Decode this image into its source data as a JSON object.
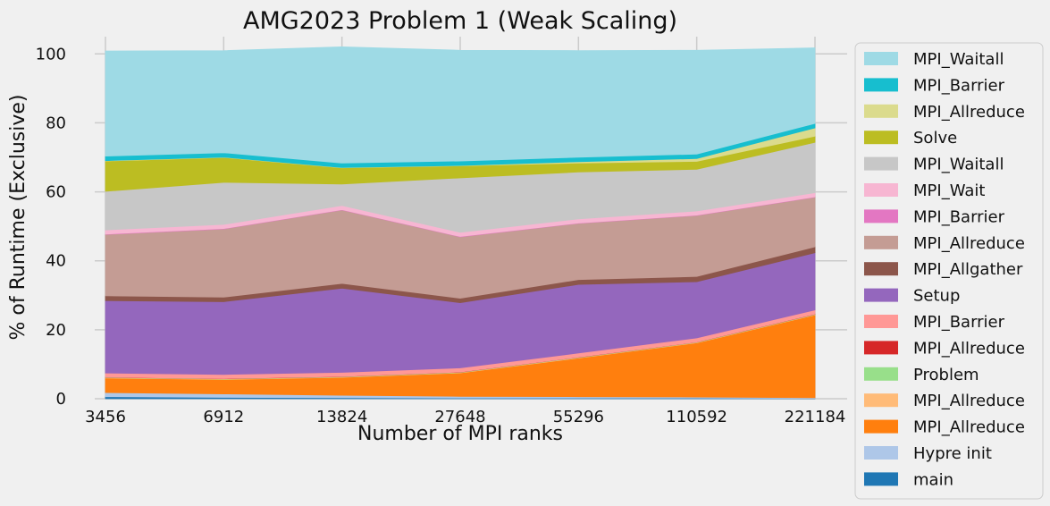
{
  "chart_data": {
    "type": "area",
    "stacked": true,
    "title": "AMG2023 Problem 1 (Weak Scaling)",
    "xlabel": "Number of MPI ranks",
    "ylabel": "% of Runtime (Exclusive)",
    "categories": [
      "3456",
      "6912",
      "13824",
      "27648",
      "55296",
      "110592",
      "221184"
    ],
    "ylim": [
      0,
      105
    ],
    "yticks": [
      0,
      20,
      40,
      60,
      80,
      100
    ],
    "grid": true,
    "legend_position": "right-outside",
    "series": [
      {
        "name": "main",
        "color": "#1f77b4",
        "values": [
          0.6,
          0.4,
          0.3,
          0.2,
          0.2,
          0.2,
          0.1
        ]
      },
      {
        "name": "Hypre init",
        "color": "#aec7e8",
        "values": [
          1.2,
          1.0,
          0.7,
          0.5,
          0.4,
          0.3,
          0.2
        ]
      },
      {
        "name": "MPI_Allreduce",
        "color": "#ff7f0e",
        "values": [
          4.2,
          4.2,
          5.2,
          6.8,
          11.2,
          15.7,
          24.0
        ]
      },
      {
        "name": "MPI_Allreduce",
        "color": "#ffbb78",
        "values": [
          0.1,
          0.1,
          0.1,
          0.1,
          0.1,
          0.1,
          0.1
        ]
      },
      {
        "name": "Problem",
        "color": "#98df8a",
        "values": [
          0.1,
          0.1,
          0.1,
          0.1,
          0.1,
          0.1,
          0.1
        ]
      },
      {
        "name": "MPI_Allreduce",
        "color": "#d62728",
        "values": [
          0.05,
          0.05,
          0.05,
          0.05,
          0.05,
          0.05,
          0.05
        ]
      },
      {
        "name": "MPI_Barrier",
        "color": "#ff9896",
        "values": [
          1.2,
          1.2,
          1.2,
          1.2,
          1.2,
          1.2,
          1.2
        ]
      },
      {
        "name": "Setup",
        "color": "#9467bd",
        "values": [
          21.0,
          21.1,
          24.4,
          18.9,
          19.9,
          16.3,
          16.6
        ]
      },
      {
        "name": "MPI_Allgather",
        "color": "#8c564b",
        "values": [
          1.4,
          1.3,
          1.4,
          1.3,
          1.4,
          1.5,
          1.7
        ]
      },
      {
        "name": "MPI_Allreduce",
        "color": "#c49c94",
        "values": [
          17.8,
          19.8,
          21.3,
          17.8,
          16.3,
          17.7,
          14.4
        ]
      },
      {
        "name": "MPI_Barrier",
        "color": "#e377c2",
        "values": [
          0.1,
          0.1,
          0.1,
          0.1,
          0.1,
          0.1,
          0.1
        ]
      },
      {
        "name": "MPI_Wait",
        "color": "#f7b6d2",
        "values": [
          1.2,
          1.2,
          1.2,
          1.2,
          1.2,
          1.2,
          1.2
        ]
      },
      {
        "name": "MPI_Waitall",
        "color": "#c7c7c7",
        "values": [
          11.2,
          12.2,
          6.2,
          15.8,
          13.6,
          12.1,
          14.6
        ]
      },
      {
        "name": "Solve",
        "color": "#bcbd22",
        "values": [
          8.8,
          7.2,
          4.7,
          3.5,
          2.6,
          2.3,
          1.8
        ]
      },
      {
        "name": "MPI_Allreduce",
        "color": "#dbdb8d",
        "values": [
          0.1,
          0.1,
          0.1,
          0.1,
          0.4,
          0.8,
          2.4
        ]
      },
      {
        "name": "MPI_Barrier",
        "color": "#17becf",
        "values": [
          1.3,
          1.3,
          1.3,
          1.3,
          1.3,
          1.3,
          1.3
        ]
      },
      {
        "name": "MPI_Waitall",
        "color": "#9edae5",
        "values": [
          30.5,
          29.6,
          33.7,
          32.1,
          30.9,
          30.1,
          21.9
        ]
      }
    ]
  }
}
